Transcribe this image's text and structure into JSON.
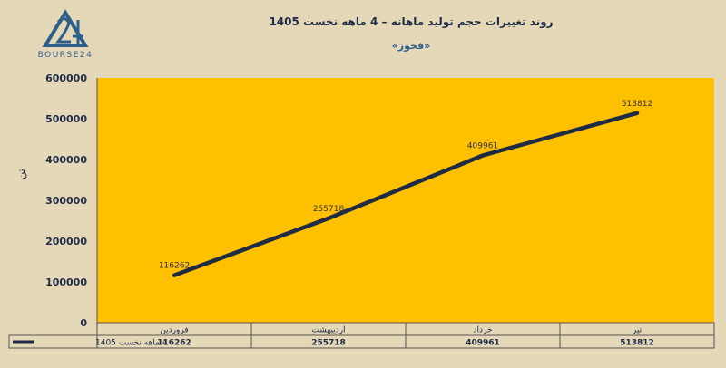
{
  "logo": {
    "text": "BOURSE24"
  },
  "chart_data": {
    "type": "line",
    "title": "روند تغییرات حجم تولید ماهانه – 4 ماهه نخست 1405",
    "subtitle": "«فخوز»",
    "ylabel": "تن",
    "categories": [
      "فروردین",
      "اردیبهشت",
      "خرداد",
      "تیر"
    ],
    "series": [
      {
        "name": "4 ماهه نخست 1405",
        "values": [
          116262,
          255718,
          409961,
          513812
        ]
      }
    ],
    "ylim": [
      0,
      600000
    ],
    "yticks": [
      0,
      100000,
      200000,
      300000,
      400000,
      500000,
      600000
    ],
    "data_labels": [
      "116262",
      "255718",
      "409961",
      "513812"
    ],
    "grid": false,
    "legend": "data-table",
    "colors": {
      "plot_bg": "#ffc000",
      "line": "#1f2a44",
      "page_bg": "#e5d8b9",
      "logo": "#2e5f8a"
    }
  }
}
